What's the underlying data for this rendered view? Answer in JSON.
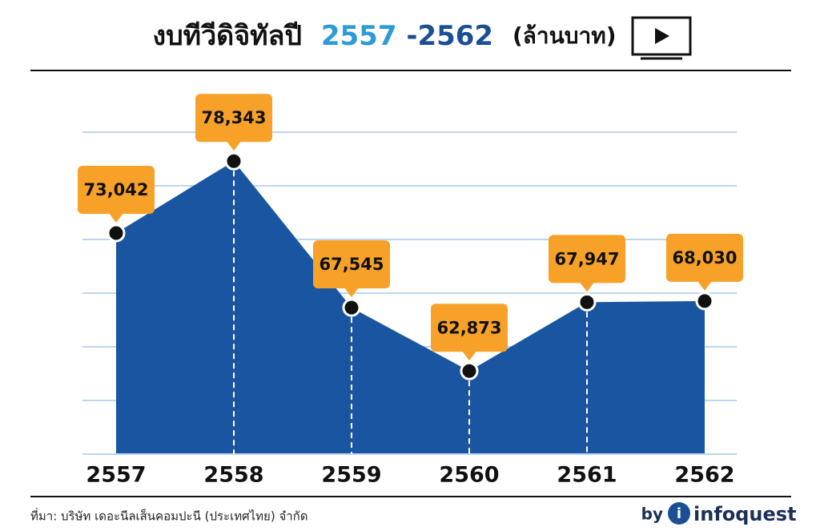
{
  "chart_data": {
    "type": "area",
    "title": [
      "งบทีวีดิจิทัลปี",
      "2557",
      "-2562",
      "(ล้านบาท)"
    ],
    "categories": [
      "2557",
      "2558",
      "2559",
      "2560",
      "2561",
      "2562"
    ],
    "values": [
      73042,
      78343,
      67545,
      62873,
      67947,
      68030
    ],
    "value_labels": [
      "73,042",
      "78,343",
      "67,545",
      "62,873",
      "67,947",
      "68,030"
    ],
    "color": "#1a55a1",
    "label_color": "#f7a128",
    "ylim": [
      56750,
      80480
    ],
    "grid": true
  },
  "footer": {
    "source": "ที่มา: บริษัท เดอะนีลเส็นคอมปะนี (ประเทศไทย) จำกัด",
    "credit": "by",
    "brand": "infoquest"
  }
}
